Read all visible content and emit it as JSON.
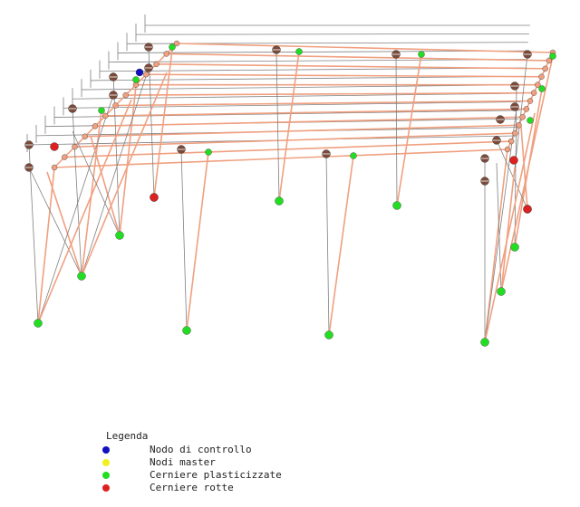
{
  "legend": {
    "title": "Legenda",
    "items": [
      {
        "label": "Nodo di controllo",
        "color": "#1010c0"
      },
      {
        "label": "Nodi master",
        "color": "#f0f020"
      },
      {
        "label": "Cerniere plasticizzate",
        "color": "#22dd22"
      },
      {
        "label": "Cerniere rotte",
        "color": "#dd2020"
      }
    ]
  }
}
